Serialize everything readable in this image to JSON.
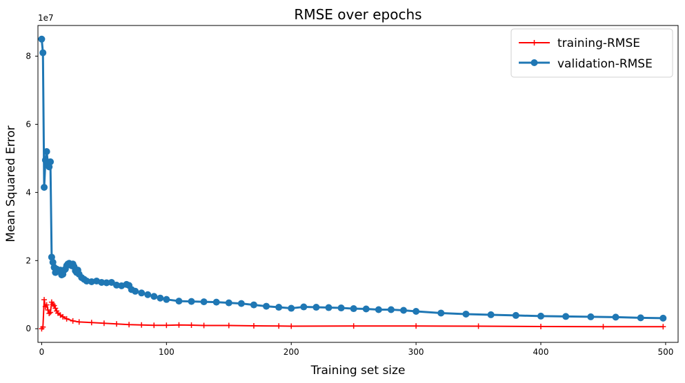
{
  "chart_data": {
    "type": "line",
    "title": "RMSE over epochs",
    "xlabel": "Training set size",
    "ylabel": "Mean Squared Error",
    "y_scale_label": "1e7",
    "xlim": [
      -3,
      510
    ],
    "ylim": [
      -4000000,
      89000000
    ],
    "x_ticks": [
      0,
      100,
      200,
      300,
      400,
      500
    ],
    "y_ticks": [
      0,
      20000000,
      40000000,
      60000000,
      80000000
    ],
    "y_tick_labels": [
      "0",
      "2",
      "4",
      "6",
      "8"
    ],
    "grid": false,
    "legend_position": "top-right",
    "series": [
      {
        "name": "training-RMSE",
        "color": "#ff0000",
        "marker": "plus",
        "linewidth": 2,
        "points": [
          [
            0,
            0
          ],
          [
            1,
            500000
          ],
          [
            2,
            8500000
          ],
          [
            3,
            6500000
          ],
          [
            4,
            7000000
          ],
          [
            5,
            5500000
          ],
          [
            6,
            4500000
          ],
          [
            7,
            4800000
          ],
          [
            8,
            7800000
          ],
          [
            9,
            7200000
          ],
          [
            10,
            6800000
          ],
          [
            11,
            6000000
          ],
          [
            12,
            5200000
          ],
          [
            13,
            4600000
          ],
          [
            15,
            4000000
          ],
          [
            17,
            3500000
          ],
          [
            20,
            2900000
          ],
          [
            25,
            2300000
          ],
          [
            30,
            2000000
          ],
          [
            40,
            1800000
          ],
          [
            50,
            1600000
          ],
          [
            60,
            1400000
          ],
          [
            70,
            1200000
          ],
          [
            80,
            1100000
          ],
          [
            90,
            1000000
          ],
          [
            100,
            1000000
          ],
          [
            110,
            1100000
          ],
          [
            120,
            1050000
          ],
          [
            130,
            950000
          ],
          [
            150,
            950000
          ],
          [
            170,
            850000
          ],
          [
            190,
            800000
          ],
          [
            200,
            750000
          ],
          [
            250,
            800000
          ],
          [
            300,
            800000
          ],
          [
            350,
            750000
          ],
          [
            400,
            650000
          ],
          [
            450,
            600000
          ],
          [
            498,
            600000
          ]
        ]
      },
      {
        "name": "validation-RMSE",
        "color": "#1f77b4",
        "marker": "circle",
        "linewidth": 3,
        "points": [
          [
            0,
            85000000
          ],
          [
            1,
            81000000
          ],
          [
            2,
            41500000
          ],
          [
            3,
            49500000
          ],
          [
            4,
            52000000
          ],
          [
            5,
            48500000
          ],
          [
            6,
            47500000
          ],
          [
            7,
            49000000
          ],
          [
            8,
            21000000
          ],
          [
            9,
            19500000
          ],
          [
            10,
            18000000
          ],
          [
            11,
            16500000
          ],
          [
            12,
            17500000
          ],
          [
            14,
            16800000
          ],
          [
            15,
            17200000
          ],
          [
            16,
            15800000
          ],
          [
            17,
            16000000
          ],
          [
            18,
            17200000
          ],
          [
            19,
            17500000
          ],
          [
            20,
            18500000
          ],
          [
            21,
            19000000
          ],
          [
            22,
            19200000
          ],
          [
            23,
            18800000
          ],
          [
            24,
            18500000
          ],
          [
            25,
            19000000
          ],
          [
            26,
            18200000
          ],
          [
            27,
            17000000
          ],
          [
            28,
            16500000
          ],
          [
            29,
            17200000
          ],
          [
            30,
            16000000
          ],
          [
            32,
            15000000
          ],
          [
            34,
            14500000
          ],
          [
            36,
            14000000
          ],
          [
            40,
            13800000
          ],
          [
            44,
            14000000
          ],
          [
            48,
            13600000
          ],
          [
            52,
            13500000
          ],
          [
            56,
            13600000
          ],
          [
            60,
            12800000
          ],
          [
            64,
            12600000
          ],
          [
            68,
            13000000
          ],
          [
            70,
            12700000
          ],
          [
            72,
            11500000
          ],
          [
            75,
            11000000
          ],
          [
            80,
            10500000
          ],
          [
            85,
            10000000
          ],
          [
            90,
            9500000
          ],
          [
            95,
            9000000
          ],
          [
            100,
            8600000
          ],
          [
            110,
            8100000
          ],
          [
            120,
            8000000
          ],
          [
            130,
            7900000
          ],
          [
            140,
            7800000
          ],
          [
            150,
            7600000
          ],
          [
            160,
            7400000
          ],
          [
            170,
            7000000
          ],
          [
            180,
            6600000
          ],
          [
            190,
            6300000
          ],
          [
            200,
            6000000
          ],
          [
            210,
            6400000
          ],
          [
            220,
            6300000
          ],
          [
            230,
            6200000
          ],
          [
            240,
            6100000
          ],
          [
            250,
            5900000
          ],
          [
            260,
            5800000
          ],
          [
            270,
            5600000
          ],
          [
            280,
            5600000
          ],
          [
            290,
            5400000
          ],
          [
            300,
            5100000
          ],
          [
            320,
            4600000
          ],
          [
            340,
            4300000
          ],
          [
            360,
            4100000
          ],
          [
            380,
            3900000
          ],
          [
            400,
            3700000
          ],
          [
            420,
            3600000
          ],
          [
            440,
            3500000
          ],
          [
            460,
            3400000
          ],
          [
            480,
            3200000
          ],
          [
            498,
            3100000
          ]
        ]
      }
    ]
  }
}
